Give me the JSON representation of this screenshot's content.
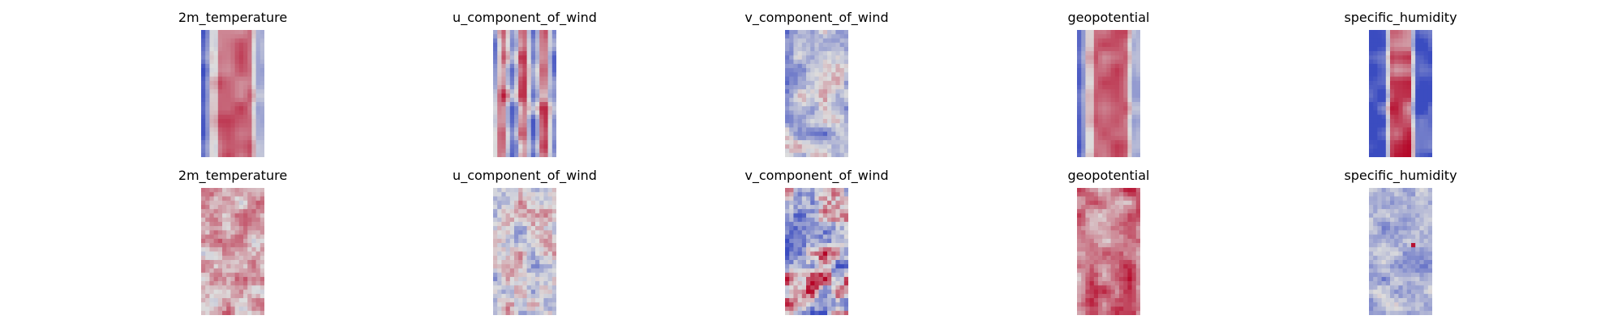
{
  "chart_data": {
    "type": "heatmap",
    "layout": "2 rows x 5 columns of small heatmap panels",
    "colormap": "coolwarm",
    "colormap_colors": [
      "#3b4cc0",
      "#dddddd",
      "#b40426"
    ],
    "axes": "off",
    "grid": false,
    "variables": [
      "2m_temperature",
      "u_component_of_wind",
      "v_component_of_wind",
      "geopotential",
      "specific_humidity"
    ],
    "panels": [
      {
        "row": 0,
        "title": "2m_temperature",
        "pattern": "warm band centre, cool edges"
      },
      {
        "row": 0,
        "title": "u_component_of_wind",
        "pattern": "mixed vertical streaks"
      },
      {
        "row": 0,
        "title": "v_component_of_wind",
        "pattern": "mostly cool noisy"
      },
      {
        "row": 0,
        "title": "geopotential",
        "pattern": "warm band centre, cool edges"
      },
      {
        "row": 0,
        "title": "specific_humidity",
        "pattern": "warm narrow core, deep blue edges"
      },
      {
        "row": 1,
        "title": "2m_temperature",
        "pattern": "light warm noise"
      },
      {
        "row": 1,
        "title": "u_component_of_wind",
        "pattern": "light mixed noise"
      },
      {
        "row": 1,
        "title": "v_component_of_wind",
        "pattern": "strong mixed blobs"
      },
      {
        "row": 1,
        "title": "geopotential",
        "pattern": "warm noise"
      },
      {
        "row": 1,
        "title": "specific_humidity",
        "pattern": "light blue noise, one red spot"
      }
    ]
  }
}
